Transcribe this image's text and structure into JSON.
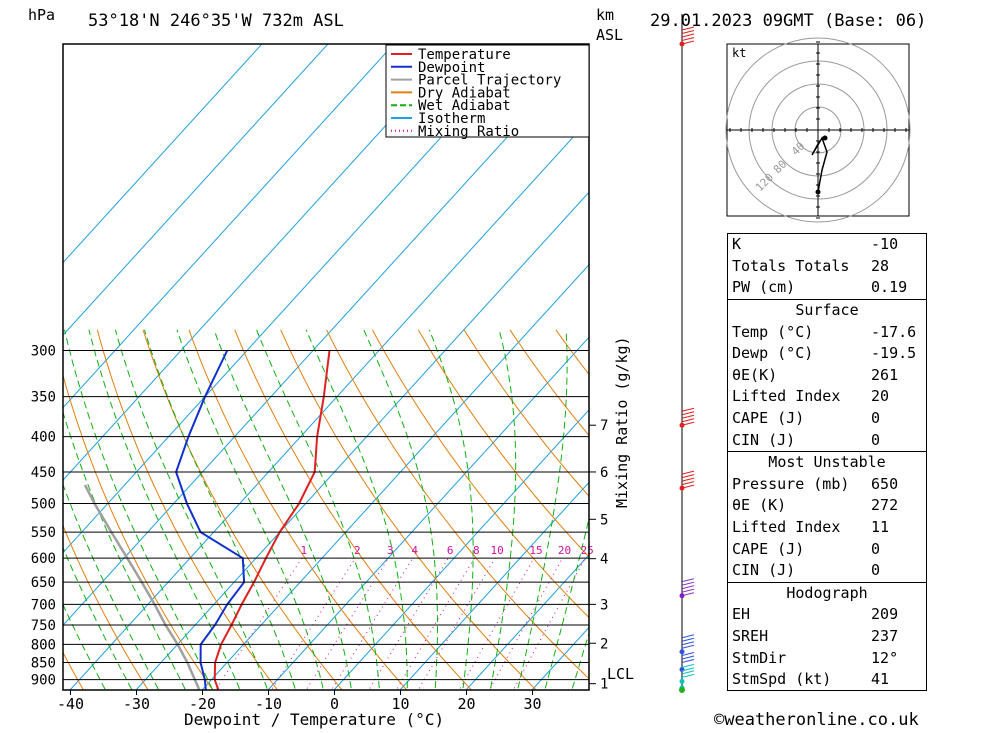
{
  "header": {
    "hpa_unit": "hPa",
    "location": "53°18'N 246°35'W 732m ASL",
    "km_label": "km",
    "asl_label": "ASL",
    "datetime": "29.01.2023 09GMT (Base: 06)"
  },
  "x_axis_label": "Dewpoint / Temperature (°C)",
  "mixing_axis_label": "Mixing Ratio (g/kg)",
  "hodo_unit": "kt",
  "hodo_ring_labels": [
    "40",
    "80",
    "120"
  ],
  "lcl_label": "LCL",
  "copyright": "©weatheronline.co.uk",
  "colors": {
    "temperature": "#e02020",
    "dewpoint": "#1030d0",
    "parcel": "#a0a0a0",
    "dry_adiabat": "#e08010",
    "wet_adiabat": "#10b010",
    "isotherm": "#20a0e0",
    "mixing": "#d010a0"
  },
  "chart_data": {
    "type": "line",
    "title": "53°18'N 246°35'W 732m ASL",
    "xlabel": "Dewpoint / Temperature (°C)",
    "ylabel": "hPa",
    "x_ticks": [
      "-40",
      "-30",
      "-20",
      "-10",
      "0",
      "10",
      "20",
      "30"
    ],
    "p_ticks": [
      "300",
      "350",
      "400",
      "450",
      "500",
      "550",
      "600",
      "650",
      "700",
      "750",
      "800",
      "850",
      "900"
    ],
    "km_ticks": [
      "1",
      "2",
      "3",
      "4",
      "5",
      "6",
      "7"
    ],
    "mixing_ratio_labels": [
      "1",
      "2",
      "3",
      "4",
      "6",
      "8",
      "10",
      "15",
      "20",
      "25"
    ],
    "legend": [
      "Temperature",
      "Dewpoint",
      "Parcel Trajectory",
      "Dry Adiabat",
      "Wet Adiabat",
      "Isotherm",
      "Mixing Ratio"
    ],
    "legend_position": "top-right",
    "series": [
      {
        "name": "Temperature",
        "p": [
          930,
          900,
          850,
          800,
          750,
          700,
          650,
          600,
          550,
          500,
          450,
          400,
          350,
          300
        ],
        "t": [
          -17.6,
          -19.5,
          -21.8,
          -23.4,
          -24.5,
          -25.8,
          -27.0,
          -28.5,
          -30.0,
          -31.0,
          -33.0,
          -37.5,
          -42.0,
          -47.5
        ]
      },
      {
        "name": "Dewpoint",
        "p": [
          930,
          900,
          850,
          800,
          750,
          700,
          650,
          600,
          550,
          500,
          450,
          400,
          350,
          300
        ],
        "t": [
          -19.5,
          -21.0,
          -24.0,
          -26.5,
          -27.0,
          -28.0,
          -28.5,
          -32.0,
          -42.0,
          -48.0,
          -54.0,
          -57.0,
          -60.0,
          -63.0
        ]
      },
      {
        "name": "Parcel Trajectory",
        "p": [
          930,
          900,
          850,
          800,
          750,
          700,
          650,
          600,
          550,
          500,
          470
        ],
        "t": [
          -20.5,
          -22.5,
          -26.0,
          -30.0,
          -34.5,
          -39.0,
          -44.0,
          -49.5,
          -55.5,
          -62.0,
          -66.0
        ]
      }
    ]
  },
  "wind_levels": [
    {
      "p": 300,
      "spd": 90
    },
    {
      "p": 385,
      "spd": 90
    },
    {
      "p": 475,
      "spd": 60
    },
    {
      "p": 680,
      "spd": 45
    },
    {
      "p": 820,
      "spd": 35
    },
    {
      "p": 870,
      "spd": 25
    },
    {
      "p": 905,
      "spd": 20
    },
    {
      "p": 925,
      "spd": 15
    }
  ],
  "indices": {
    "general": [
      [
        "K",
        "-10"
      ],
      [
        "Totals Totals",
        "28"
      ],
      [
        "PW (cm)",
        "0.19"
      ]
    ],
    "surface_title": "Surface",
    "surface": [
      [
        "Temp (°C)",
        "-17.6"
      ],
      [
        "Dewp (°C)",
        "-19.5"
      ],
      [
        "θE(K)",
        "261"
      ],
      [
        "Lifted Index",
        "20"
      ],
      [
        "CAPE (J)",
        "0"
      ],
      [
        "CIN (J)",
        "0"
      ]
    ],
    "mu_title": "Most Unstable",
    "mu": [
      [
        "Pressure (mb)",
        "650"
      ],
      [
        "θE (K)",
        "272"
      ],
      [
        "Lifted Index",
        "11"
      ],
      [
        "CAPE (J)",
        "0"
      ],
      [
        "CIN (J)",
        "0"
      ]
    ],
    "hodo_title": "Hodograph",
    "hodo": [
      [
        "EH",
        "209"
      ],
      [
        "SREH",
        "237"
      ],
      [
        "StmDir",
        "12°"
      ],
      [
        "StmSpd (kt)",
        "41"
      ]
    ]
  }
}
